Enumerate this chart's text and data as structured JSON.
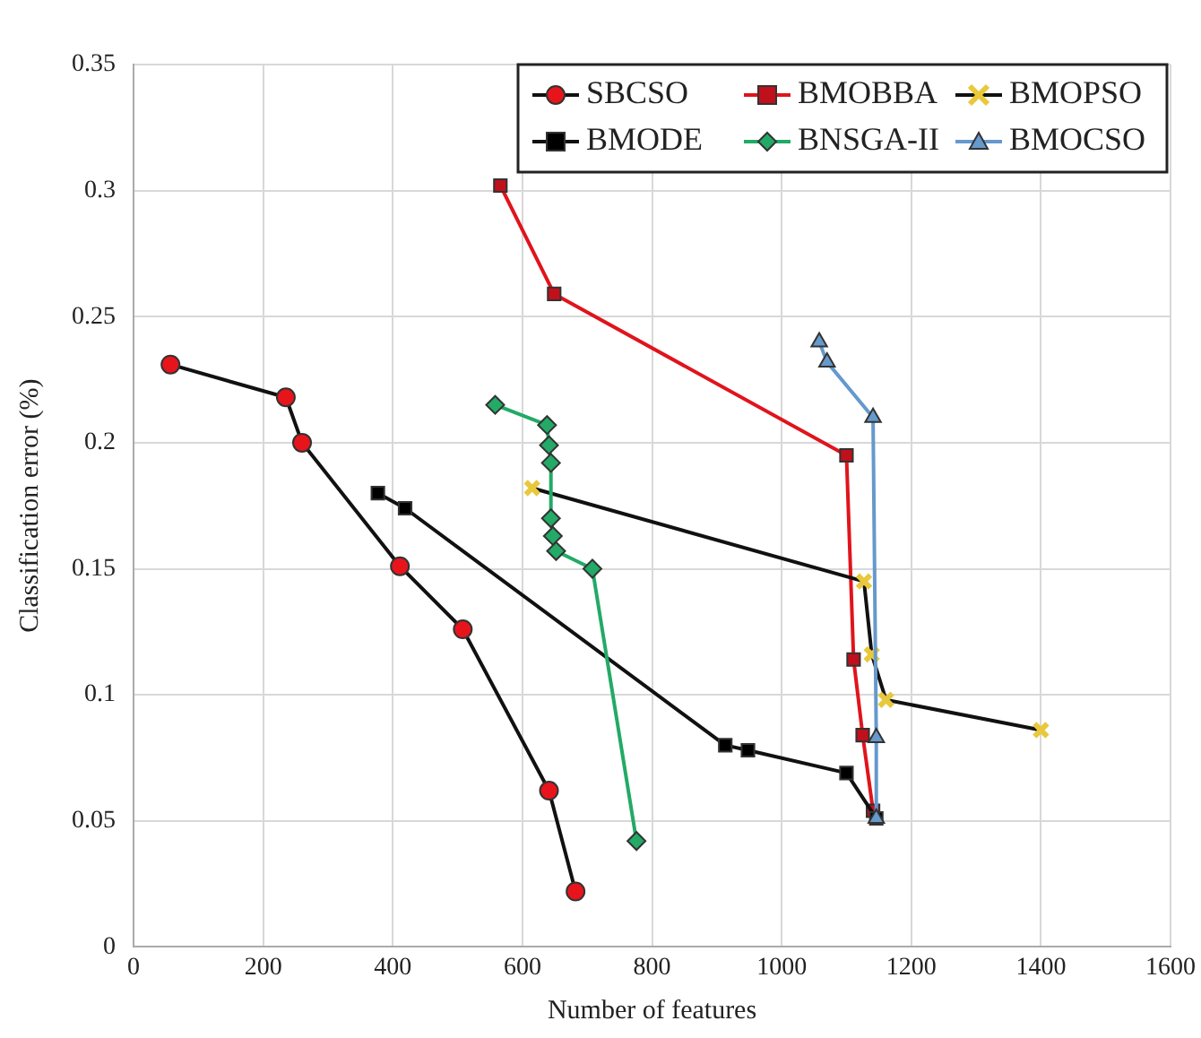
{
  "chart_data": {
    "type": "line",
    "xlabel": "Number of features",
    "ylabel": "Classification error (%)",
    "xlim": [
      0,
      1600
    ],
    "xticks": [
      0,
      200,
      400,
      600,
      800,
      1000,
      1200,
      1400,
      1600
    ],
    "ylim": [
      0,
      0.35
    ],
    "yticks": [
      0,
      0.05,
      0.1,
      0.15,
      0.2,
      0.25,
      0.3,
      0.35
    ],
    "grid": true,
    "legend": "top right",
    "line_style": "solid",
    "series": [
      {
        "name": "SBCSO",
        "color": "#111111",
        "colors": [
          "#e8141c",
          "#e8141c",
          "#e8141c",
          "#e8141c",
          "#e8141c",
          "#e8141c",
          "#e8141c"
        ],
        "marker": "circle",
        "x": [
          57,
          235,
          260,
          411,
          508,
          641,
          682
        ],
        "values": [
          0.231,
          0.218,
          0.2,
          0.151,
          0.126,
          0.062,
          0.022
        ]
      },
      {
        "name": "BMOBBA",
        "color": "#e0141c",
        "colors": [
          "#c0101c",
          "#c0101c",
          "#c0101c",
          "#c0101c",
          "#c0101c",
          "#c0101c"
        ],
        "marker": "square",
        "x": [
          566,
          649,
          1100,
          1111,
          1125,
          1141
        ],
        "values": [
          0.302,
          0.259,
          0.195,
          0.114,
          0.084,
          0.054
        ]
      },
      {
        "name": "BMOPSO",
        "color": "#111111",
        "colors": [
          "#e8c83c",
          "#e8c83c",
          "#e8c83c",
          "#e8c83c",
          "#e8c83c"
        ],
        "marker": "cross",
        "x": [
          615,
          1127,
          1139,
          1161,
          1400
        ],
        "values": [
          0.182,
          0.145,
          0.116,
          0.098,
          0.086
        ]
      },
      {
        "name": "BMODE",
        "color": "#111111",
        "colors": [
          "#000000",
          "#000000",
          "#000000",
          "#000000",
          "#000000",
          "#000000"
        ],
        "marker": "square",
        "x": [
          377,
          419,
          913,
          948,
          1100,
          1146
        ],
        "values": [
          0.18,
          0.174,
          0.08,
          0.078,
          0.069,
          0.051
        ]
      },
      {
        "name": "BNSGA-II",
        "color": "#22aa66",
        "marker": "diamond",
        "x": [
          558,
          638,
          641,
          644,
          644,
          647,
          652,
          708,
          776
        ],
        "values": [
          0.215,
          0.207,
          0.199,
          0.192,
          0.17,
          0.163,
          0.157,
          0.15,
          0.042
        ]
      },
      {
        "name": "BMOCSO",
        "color": "#6699cc",
        "marker": "triangle",
        "x": [
          1058,
          1070,
          1141,
          1146,
          1146
        ],
        "values": [
          0.24,
          0.232,
          0.21,
          0.083,
          0.051
        ]
      }
    ]
  }
}
